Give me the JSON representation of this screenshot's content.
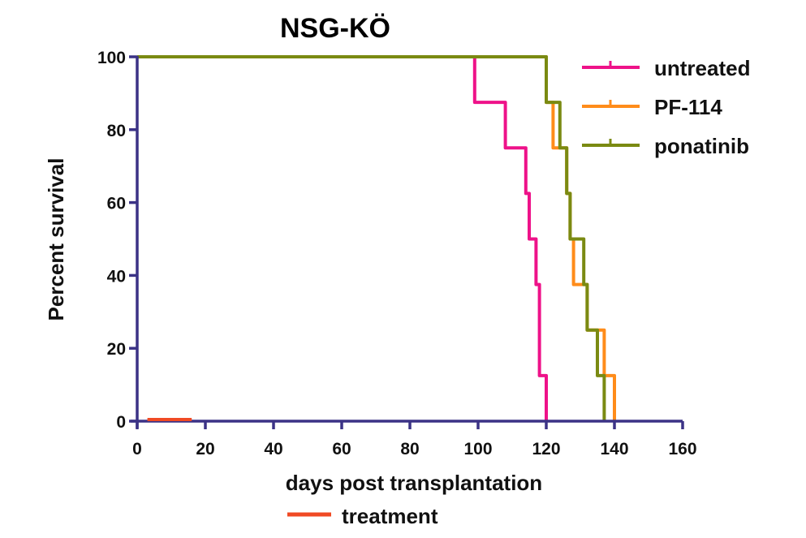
{
  "chart_data": {
    "type": "line",
    "subtype": "kaplan-meier-step",
    "title": "NSG-KÖ",
    "xlabel": "days post transplantation",
    "ylabel": "Percent survival",
    "xlim": [
      0,
      160
    ],
    "ylim": [
      0,
      100
    ],
    "xticks": [
      0,
      20,
      40,
      60,
      80,
      100,
      120,
      140,
      160
    ],
    "yticks": [
      0,
      20,
      40,
      60,
      80,
      100
    ],
    "grid": false,
    "legend_position": "top-right",
    "series": [
      {
        "name": "untreated",
        "color": "#ee1289",
        "steps": [
          [
            0,
            100
          ],
          [
            99,
            87.5
          ],
          [
            108,
            75
          ],
          [
            114,
            62.5
          ],
          [
            115,
            50
          ],
          [
            117,
            37.5
          ],
          [
            118,
            12.5
          ],
          [
            120,
            0
          ]
        ]
      },
      {
        "name": "PF-114",
        "color": "#ff8c1a",
        "steps": [
          [
            0,
            100
          ],
          [
            120,
            87.5
          ],
          [
            122,
            75
          ],
          [
            126,
            62.5
          ],
          [
            127,
            50
          ],
          [
            128,
            37.5
          ],
          [
            132,
            25
          ],
          [
            137,
            12.5
          ],
          [
            140,
            0
          ]
        ]
      },
      {
        "name": "ponatinib",
        "color": "#7a8a12",
        "steps": [
          [
            0,
            100
          ],
          [
            120,
            87.5
          ],
          [
            124,
            75
          ],
          [
            126,
            62.5
          ],
          [
            127,
            50
          ],
          [
            131,
            37.5
          ],
          [
            132,
            25
          ],
          [
            135,
            12.5
          ],
          [
            137,
            0
          ]
        ]
      }
    ],
    "annotations": [
      {
        "type": "bar",
        "label": "treatment",
        "from_day": 3,
        "to_day": 16,
        "y": 0,
        "color": "#f04a24"
      }
    ],
    "axis_color": "#3b3286"
  }
}
